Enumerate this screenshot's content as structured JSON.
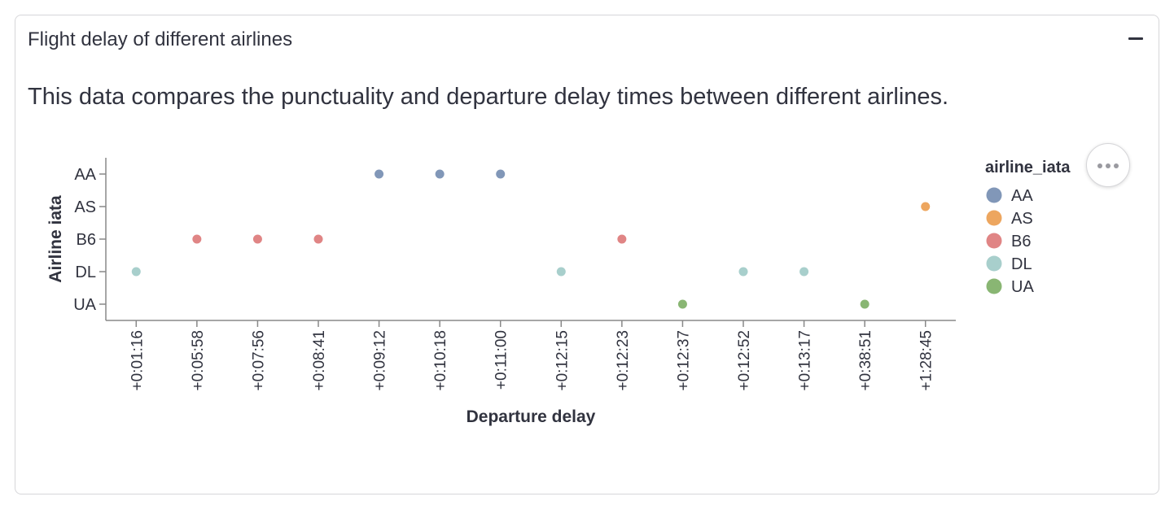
{
  "card": {
    "title": "Flight delay of different airlines",
    "collapse_icon": "minus-icon"
  },
  "description": "This data compares the punctuality and departure delay times between different airlines.",
  "menu": {
    "icon": "more-horizontal-icon"
  },
  "chart_data": {
    "type": "scatter",
    "xlabel": "Departure delay",
    "ylabel": "Airline iata",
    "x_categories": [
      "+0:01:16",
      "+0:05:58",
      "+0:07:56",
      "+0:08:41",
      "+0:09:12",
      "+0:10:18",
      "+0:11:00",
      "+0:12:15",
      "+0:12:23",
      "+0:12:37",
      "+0:12:52",
      "+0:13:17",
      "+0:38:51",
      "+1:28:45"
    ],
    "y_categories": [
      "AA",
      "AS",
      "B6",
      "DL",
      "UA"
    ],
    "legend": {
      "title": "airline_iata",
      "placement": "right",
      "entries": [
        {
          "label": "AA",
          "color": "#8197b8"
        },
        {
          "label": "AS",
          "color": "#eda65f"
        },
        {
          "label": "B6",
          "color": "#e08585"
        },
        {
          "label": "DL",
          "color": "#a8cfcc"
        },
        {
          "label": "UA",
          "color": "#89b673"
        }
      ]
    },
    "points": [
      {
        "x": "+0:01:16",
        "y": "DL"
      },
      {
        "x": "+0:05:58",
        "y": "B6"
      },
      {
        "x": "+0:07:56",
        "y": "B6"
      },
      {
        "x": "+0:08:41",
        "y": "B6"
      },
      {
        "x": "+0:09:12",
        "y": "AA"
      },
      {
        "x": "+0:10:18",
        "y": "AA"
      },
      {
        "x": "+0:11:00",
        "y": "AA"
      },
      {
        "x": "+0:12:15",
        "y": "DL"
      },
      {
        "x": "+0:12:23",
        "y": "B6"
      },
      {
        "x": "+0:12:37",
        "y": "UA"
      },
      {
        "x": "+0:12:52",
        "y": "DL"
      },
      {
        "x": "+0:13:17",
        "y": "DL"
      },
      {
        "x": "+0:38:51",
        "y": "UA"
      },
      {
        "x": "+1:28:45",
        "y": "AS"
      }
    ],
    "grid": false
  }
}
